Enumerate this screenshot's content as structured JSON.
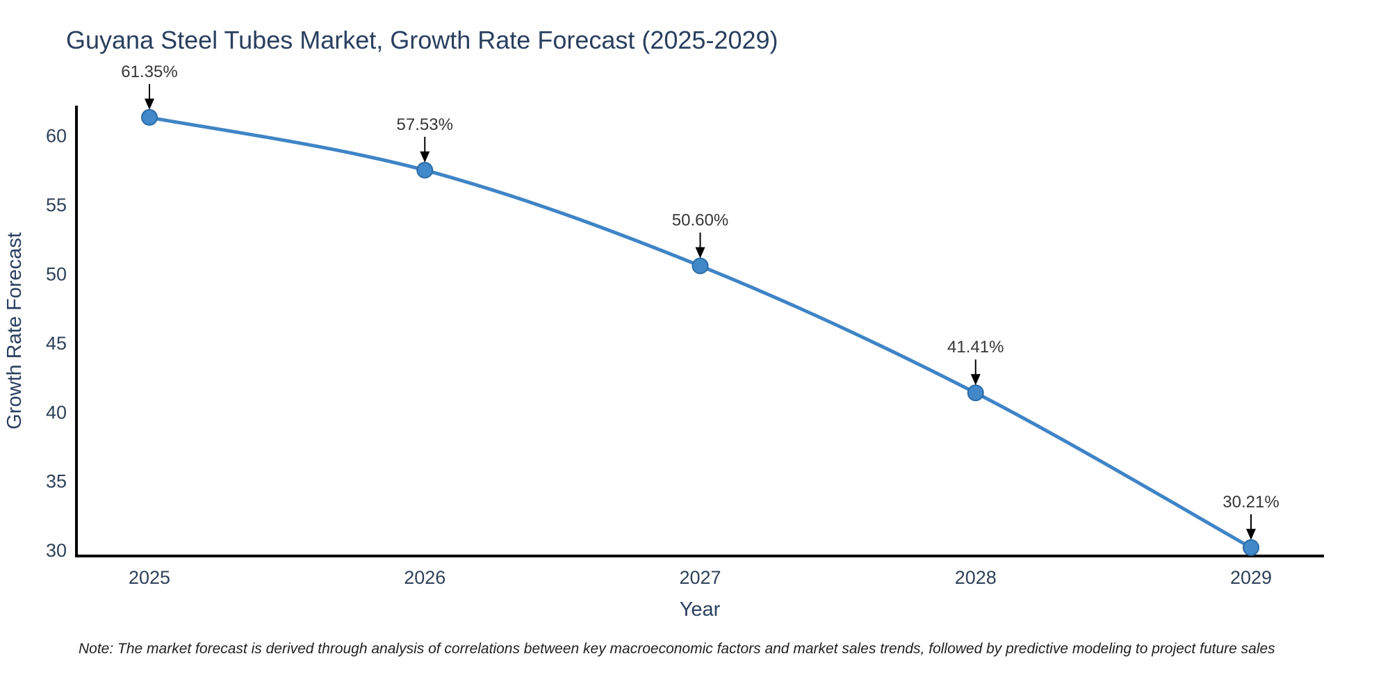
{
  "chart_data": {
    "type": "line",
    "title": "Guyana Steel Tubes Market, Growth Rate Forecast (2025-2029)",
    "xlabel": "Year",
    "ylabel": "Growth Rate Forecast",
    "categories": [
      "2025",
      "2026",
      "2027",
      "2028",
      "2029"
    ],
    "values": [
      61.35,
      57.53,
      50.6,
      41.41,
      30.21
    ],
    "point_labels": [
      "61.35%",
      "57.53%",
      "50.60%",
      "41.41%",
      "30.21%"
    ],
    "yticks": [
      30,
      35,
      40,
      45,
      50,
      55,
      60
    ],
    "ylim": [
      29.6,
      62.2
    ],
    "grid": false,
    "legend": "none",
    "line_shape": "spline",
    "line_color": "#3f84c6",
    "marker_color": "#4189c9",
    "marker_edge_color": "#2d6ca6",
    "axis_color": "#000000",
    "annotation_arrow_color": "#000000",
    "note": "Note: The market forecast is derived through analysis of correlations between key macroeconomic factors and market sales trends, followed by predictive modeling to project future sales"
  }
}
